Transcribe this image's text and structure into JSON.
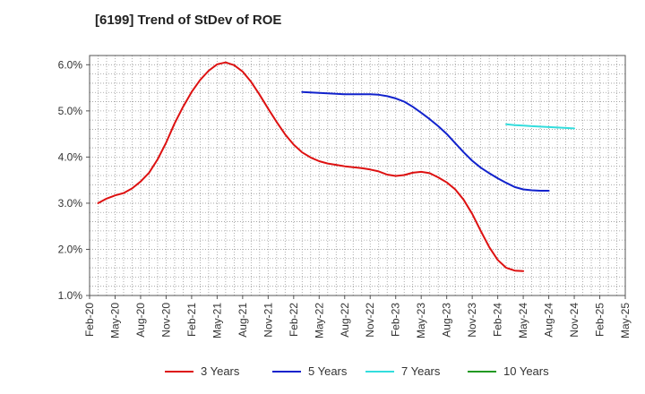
{
  "chart_data": {
    "type": "line",
    "title": "[6199]  Trend of StDev of ROE",
    "xlabel": "",
    "ylabel": "",
    "ylim": [
      1.0,
      6.2
    ],
    "y_ticks": [
      "1.0%",
      "2.0%",
      "3.0%",
      "4.0%",
      "5.0%",
      "6.0%"
    ],
    "y_tick_values": [
      1,
      2,
      3,
      4,
      5,
      6
    ],
    "x_ticks": [
      "Feb-20",
      "May-20",
      "Aug-20",
      "Nov-20",
      "Feb-21",
      "May-21",
      "Aug-21",
      "Nov-21",
      "Feb-22",
      "May-22",
      "Aug-22",
      "Nov-22",
      "Feb-23",
      "May-23",
      "Aug-23",
      "Nov-23",
      "Feb-24",
      "May-24",
      "Aug-24",
      "Nov-24",
      "Feb-25",
      "May-25"
    ],
    "grid": true,
    "legend_position": "bottom",
    "series": [
      {
        "name": "3 Years",
        "color": "#dd1111",
        "start_index": 1,
        "values": [
          3.0,
          3.1,
          3.17,
          3.22,
          3.32,
          3.47,
          3.66,
          3.95,
          4.31,
          4.73,
          5.09,
          5.41,
          5.67,
          5.87,
          6.01,
          6.05,
          5.99,
          5.85,
          5.63,
          5.35,
          5.05,
          4.76,
          4.49,
          4.27,
          4.1,
          3.99,
          3.91,
          3.86,
          3.83,
          3.8,
          3.78,
          3.76,
          3.73,
          3.69,
          3.62,
          3.59,
          3.61,
          3.66,
          3.68,
          3.65,
          3.56,
          3.45,
          3.3,
          3.07,
          2.77,
          2.4,
          2.05,
          1.77,
          1.6,
          1.54,
          1.53
        ]
      },
      {
        "name": "5 Years",
        "color": "#1122cc",
        "start_index": 25,
        "values": [
          5.41,
          5.4,
          5.39,
          5.38,
          5.37,
          5.36,
          5.36,
          5.36,
          5.36,
          5.35,
          5.32,
          5.27,
          5.2,
          5.09,
          4.96,
          4.82,
          4.67,
          4.5,
          4.3,
          4.1,
          3.92,
          3.77,
          3.65,
          3.54,
          3.44,
          3.35,
          3.3,
          3.28,
          3.27,
          3.27
        ]
      },
      {
        "name": "7 Years",
        "color": "#33dddd",
        "start_index": 49,
        "values": [
          4.71,
          4.69,
          4.68,
          4.67,
          4.66,
          4.65,
          4.64,
          4.63,
          4.62
        ]
      },
      {
        "name": "10 Years",
        "color": "#229922",
        "start_index": 0,
        "values": []
      }
    ]
  }
}
